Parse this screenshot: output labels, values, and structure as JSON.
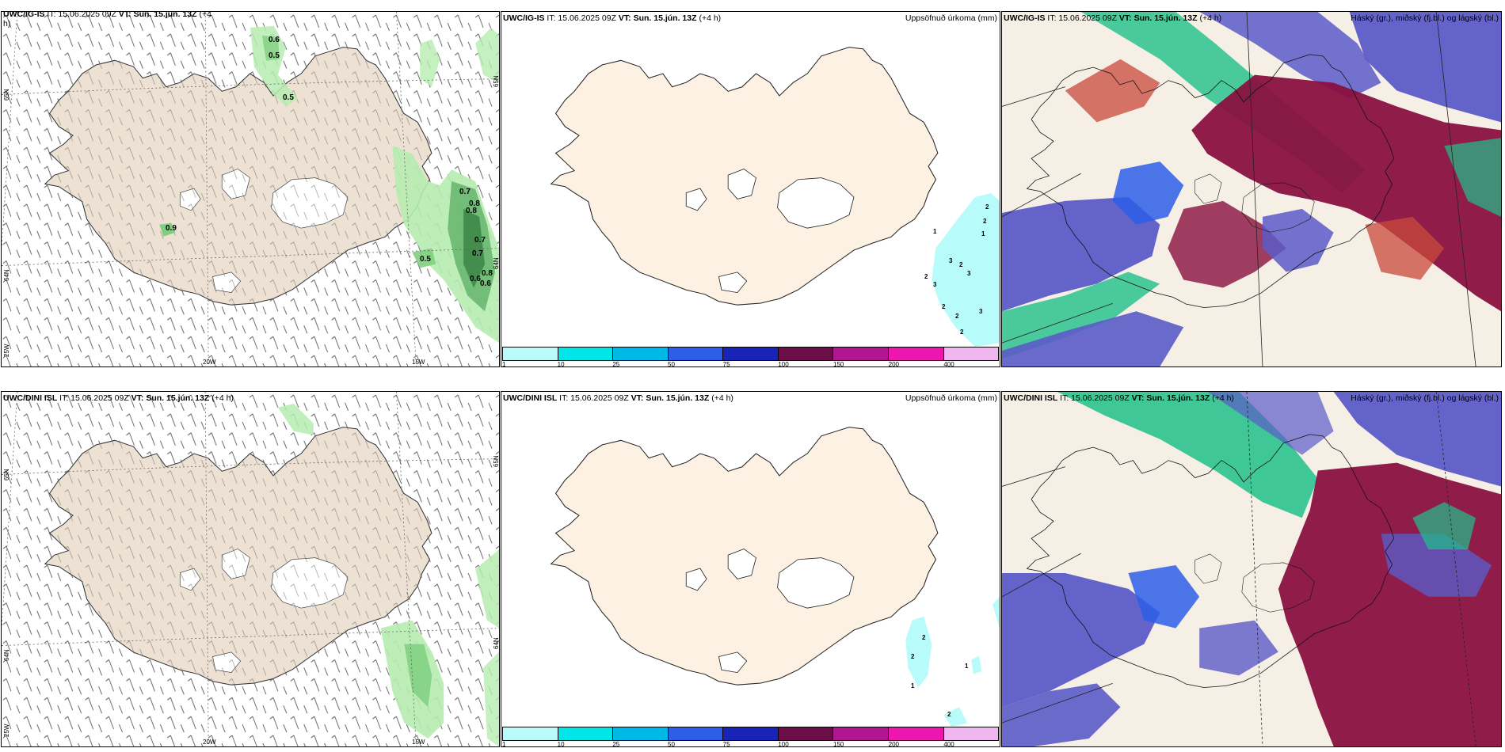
{
  "rows": [
    {
      "wind_panel": {
        "title_bold": "UWC/IG-IS",
        "title_it": "IT: 15.06.2025 09Z",
        "title_vt_label": "VT:",
        "title_vt": "Sun. 15.jún. 13Z",
        "title_lead": "(+4",
        "title_wrap": "h)",
        "lat_top": "65N",
        "lat_mid": "64N",
        "lon_left": "25W",
        "lon_mid": "20W",
        "lon_right": "15W",
        "lat_right_top": "65N",
        "lat_right_mid": "64N",
        "labels": [
          "0.6",
          "0.5",
          "0.5",
          "0.9",
          "0.7",
          "0.8",
          "0.8",
          "0.7",
          "0.7",
          "0.5",
          "0.6",
          "0.8",
          "0.6"
        ]
      },
      "precip_panel": {
        "title_bold": "UWC/IG-IS",
        "title_it": "IT: 15.06.2025 09Z",
        "title_vt_label": "VT:",
        "title_vt": "Sun. 15.jún. 13Z",
        "title_lead": "(+4 h)",
        "title_right": "Uppsöfnuð úrkoma (mm)",
        "labels": [
          "2",
          "2",
          "1",
          "1",
          "3",
          "2",
          "3",
          "2",
          "3",
          "2",
          "2",
          "3",
          "2"
        ]
      },
      "cloud_panel": {
        "title_bold": "UWC/IG-IS",
        "title_it": "IT: 15.06.2025 09Z",
        "title_vt_label": "VT:",
        "title_vt": "Sun. 15.jún. 13Z",
        "title_lead": "(+4 h)",
        "title_right": "Háský (gr.), miðský (fj.bl.) og lágský (bl.)"
      }
    },
    {
      "wind_panel": {
        "title_bold": "UWC/DINI ISL",
        "title_it": "IT: 15.06.2025 09Z",
        "title_vt_label": "VT:",
        "title_vt": "Sun. 15.jún. 13Z",
        "title_lead": "(+4 h)",
        "lat_top": "65N",
        "lat_mid": "64N",
        "lon_left": "25W",
        "lon_mid": "20W",
        "lon_right": "15W",
        "lat_right_top": "65N",
        "lat_right_mid": "64N"
      },
      "precip_panel": {
        "title_bold": "UWC/DINI ISL",
        "title_it": "IT: 15.06.2025 09Z",
        "title_vt_label": "VT:",
        "title_vt": "Sun. 15.jún. 13Z",
        "title_lead": "(+4 h)",
        "title_right": "Uppsöfnuð úrkoma (mm)",
        "labels": [
          "2",
          "2",
          "1",
          "1",
          "2"
        ]
      },
      "cloud_panel": {
        "title_bold": "UWC/DINI ISL",
        "title_it": "IT: 15.06.2025 09Z",
        "title_vt_label": "VT:",
        "title_vt": "Sun. 15.jún. 13Z",
        "title_lead": "(+4 h)",
        "title_right": "Háský (gr.), miðský (fj.bl.) og lágský (bl.)"
      }
    }
  ],
  "colorbar": {
    "ticks": [
      "1",
      "10",
      "25",
      "50",
      "75",
      "100",
      "150",
      "200",
      "400"
    ],
    "colors": [
      "#b7fbfb",
      "#00e5e5",
      "#00b8e6",
      "#2d5ee8",
      "#1a23b8",
      "#6b0e4a",
      "#b0168f",
      "#ee16b0",
      "#f0b6ef"
    ]
  },
  "colors": {
    "land_wind": "#ede1d3",
    "land_precip": "#fdf1e3",
    "cloud_high": "#1fc08a",
    "cloud_mid": "#5b5bc8",
    "cloud_low": "#8a1040"
  }
}
